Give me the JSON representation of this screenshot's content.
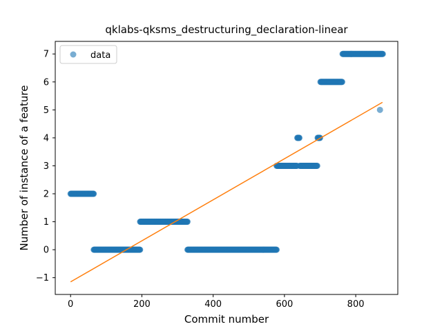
{
  "chart_data": {
    "type": "scatter",
    "title": "qklabs-qksms_destructuring_declaration-linear",
    "xlabel": "Commit number",
    "ylabel": "Number of instance of a feature",
    "xlim": [
      -43,
      918
    ],
    "ylim": [
      -1.6,
      7.45
    ],
    "x_ticks": [
      0,
      200,
      400,
      600,
      800
    ],
    "y_ticks": [
      -1,
      0,
      1,
      2,
      3,
      4,
      5,
      6,
      7
    ],
    "x_tick_labels": [
      "0",
      "200",
      "400",
      "600",
      "800"
    ],
    "y_tick_labels": [
      "−1",
      "0",
      "1",
      "2",
      "3",
      "4",
      "5",
      "6",
      "7"
    ],
    "legend": {
      "position": "top-left",
      "entries": [
        "data"
      ]
    },
    "grid": false,
    "series": [
      {
        "name": "data",
        "kind": "scatter",
        "color": "#1f77b4",
        "segments": [
          {
            "x_start": 0,
            "x_end": 65,
            "y": 2
          },
          {
            "x_start": 65,
            "x_end": 195,
            "y": 0
          },
          {
            "x_start": 195,
            "x_end": 328,
            "y": 1
          },
          {
            "x_start": 328,
            "x_end": 578,
            "y": 0
          },
          {
            "x_start": 578,
            "x_end": 635,
            "y": 3
          },
          {
            "x_start": 636,
            "x_end": 642,
            "y": 4
          },
          {
            "x_start": 643,
            "x_end": 692,
            "y": 3
          },
          {
            "x_start": 693,
            "x_end": 700,
            "y": 4
          },
          {
            "x_start": 701,
            "x_end": 762,
            "y": 6
          },
          {
            "x_start": 763,
            "x_end": 876,
            "y": 7
          }
        ],
        "points": [
          {
            "x": 868,
            "y": 5
          }
        ]
      },
      {
        "kind": "line",
        "color": "#ff7f0e",
        "x": [
          0,
          875
        ],
        "y": [
          -1.15,
          5.27
        ]
      }
    ]
  }
}
